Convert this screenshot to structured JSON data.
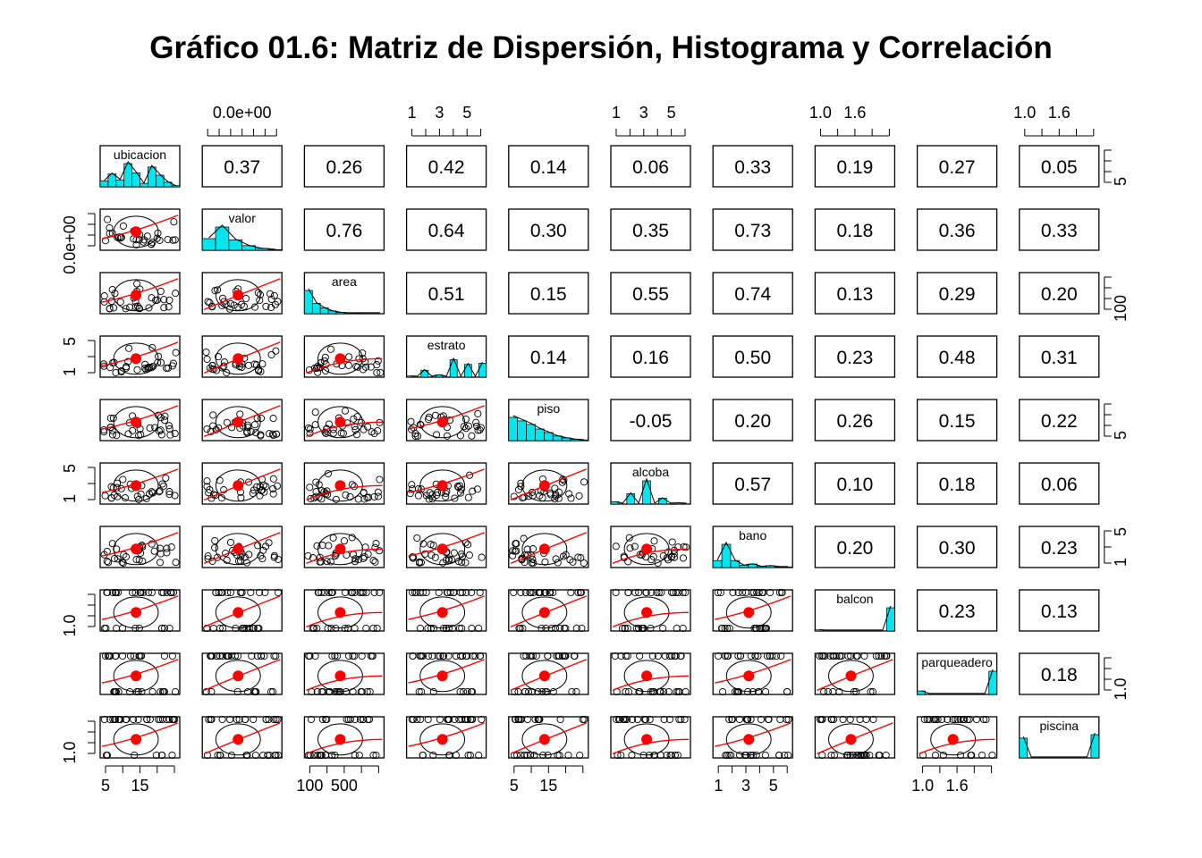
{
  "title": "Gráfico 01.6: Matriz de Dispersión, Histograma y Correlación",
  "colors": {
    "hist": "#00E5EE",
    "smooth": "#FF0000",
    "frame": "#000000"
  },
  "chart_data": {
    "type": "scatter-matrix",
    "variables": [
      "ubicacion",
      "valor",
      "area",
      "estrato",
      "piso",
      "alcoba",
      "bano",
      "balcon",
      "parqueadero",
      "piscina"
    ],
    "upper_panel": "correlation",
    "diag_panel": "histogram",
    "lower_panel": "scatter with loess smooth, mean point and ellipse",
    "correlations": [
      [
        "",
        "0.37",
        "0.26",
        "0.42",
        "0.14",
        "0.06",
        "0.33",
        "0.19",
        "0.27",
        "0.05"
      ],
      [
        "",
        "",
        "0.76",
        "0.64",
        "0.30",
        "0.35",
        "0.73",
        "0.18",
        "0.36",
        "0.33"
      ],
      [
        "",
        "",
        "",
        "0.51",
        "0.15",
        "0.55",
        "0.74",
        "0.13",
        "0.29",
        "0.20"
      ],
      [
        "",
        "",
        "",
        "",
        "0.14",
        "0.16",
        "0.50",
        "0.23",
        "0.48",
        "0.31"
      ],
      [
        "",
        "",
        "",
        "",
        "",
        "-0.05",
        "0.20",
        "0.26",
        "0.15",
        "0.22"
      ],
      [
        "",
        "",
        "",
        "",
        "",
        "",
        "0.57",
        "0.10",
        "0.18",
        "0.06"
      ],
      [
        "",
        "",
        "",
        "",
        "",
        "",
        "",
        "0.20",
        "0.30",
        "0.23"
      ],
      [
        "",
        "",
        "",
        "",
        "",
        "",
        "",
        "",
        "0.23",
        "0.13"
      ],
      [
        "",
        "",
        "",
        "",
        "",
        "",
        "",
        "",
        "",
        "0.18"
      ]
    ],
    "histograms": [
      [
        0.25,
        0.55,
        0.3,
        1.0,
        0.6,
        0.15,
        0.85,
        0.5,
        0.2,
        0.05
      ],
      [
        0.5,
        1.0,
        0.45,
        0.2,
        0.08,
        0.03
      ],
      [
        1.0,
        0.45,
        0.25,
        0.12,
        0.06,
        0.03,
        0.02,
        0.01,
        0.01,
        0.005
      ],
      [
        0.05,
        0.0,
        0.3,
        0.0,
        0.1,
        0.0,
        0.75,
        0.0,
        0.55,
        0.0,
        0.6
      ],
      [
        1.0,
        0.85,
        0.7,
        0.5,
        0.35,
        0.2,
        0.12,
        0.06,
        0.03
      ],
      [
        0.1,
        0.0,
        0.45,
        0.0,
        1.0,
        0.0,
        0.25,
        0.0,
        0.05,
        0.0
      ],
      [
        0.3,
        1.0,
        0.3,
        0.1,
        0.15,
        0.05,
        0.08,
        0.02,
        0.02
      ],
      [
        0.05,
        0.0,
        0.0,
        0.0,
        0.0,
        0.0,
        0.0,
        0.0,
        0.0,
        1.0
      ],
      [
        0.15,
        0.0,
        0.0,
        0.0,
        0.0,
        0.0,
        0.0,
        0.0,
        0.0,
        1.0
      ],
      [
        0.85,
        0.0,
        0.0,
        0.0,
        0.0,
        0.0,
        0.0,
        0.0,
        0.0,
        1.0
      ]
    ],
    "axes": {
      "top": [
        {
          "col": 1,
          "ticks": [
            "0.0e+00"
          ]
        },
        {
          "col": 3,
          "ticks": [
            "1",
            "3",
            "5"
          ]
        },
        {
          "col": 5,
          "ticks": [
            "1",
            "3",
            "5"
          ]
        },
        {
          "col": 7,
          "ticks": [
            "1.0",
            "1.6"
          ]
        },
        {
          "col": 9,
          "ticks": [
            "1.0",
            "1.6"
          ]
        }
      ],
      "bottom": [
        {
          "col": 0,
          "ticks": [
            "5",
            "15"
          ]
        },
        {
          "col": 2,
          "ticks": [
            "100",
            "500"
          ]
        },
        {
          "col": 4,
          "ticks": [
            "5",
            "15"
          ]
        },
        {
          "col": 6,
          "ticks": [
            "1",
            "3",
            "5"
          ]
        },
        {
          "col": 8,
          "ticks": [
            "1.0",
            "1.6"
          ]
        }
      ],
      "left": [
        {
          "row": 1,
          "ticks": [
            "0.0e+00"
          ]
        },
        {
          "row": 3,
          "ticks": [
            "1",
            "5"
          ]
        },
        {
          "row": 5,
          "ticks": [
            "1",
            "5"
          ]
        },
        {
          "row": 7,
          "ticks": [
            "1.0"
          ]
        },
        {
          "row": 9,
          "ticks": [
            "1.0"
          ]
        }
      ],
      "right": [
        {
          "row": 0,
          "ticks": [
            "5"
          ]
        },
        {
          "row": 2,
          "ticks": [
            "100"
          ]
        },
        {
          "row": 4,
          "ticks": [
            "5"
          ]
        },
        {
          "row": 6,
          "ticks": [
            "1",
            "5"
          ]
        },
        {
          "row": 8,
          "ticks": [
            "1.0"
          ]
        }
      ]
    }
  }
}
